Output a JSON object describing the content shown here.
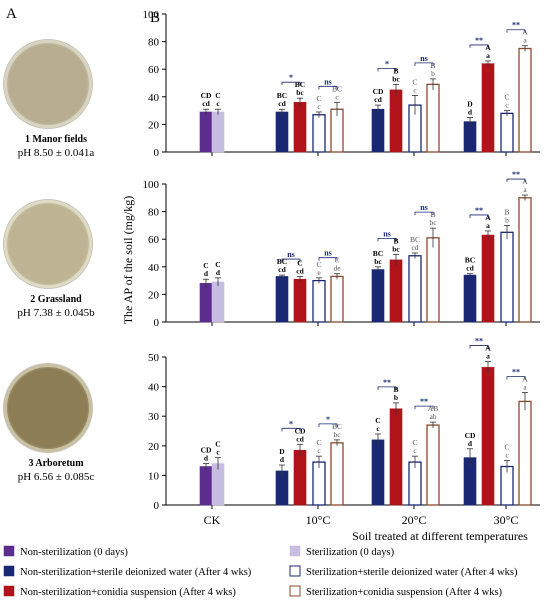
{
  "panel_a": {
    "letter": "A",
    "dishes": [
      {
        "label": "1 Manor fields",
        "ph": "pH 8.50 ± 0.041a",
        "color": "#b7ae92",
        "edge": "#d9d4c2"
      },
      {
        "label": "2 Grassland",
        "ph": "pH 7.38 ± 0.045b",
        "color": "#bdb493",
        "edge": "#dedac6"
      },
      {
        "label": "3 Arboretum",
        "ph": "pH 6.56 ± 0.085c",
        "color": "#8c7d55",
        "edge": "#c9c1a6"
      }
    ]
  },
  "chart_data": {
    "type": "bar",
    "panel_letter": "B",
    "ylabel": "The AP of the soil (mg/kg)",
    "xlabel": "Soil treated at different temperatures",
    "categories": [
      "CK",
      "10°C",
      "20°C",
      "30°C"
    ],
    "legend": [
      {
        "label": "Non-sterilization (0 days)",
        "color": "#5b2d8e",
        "fill": "#5b2d8e"
      },
      {
        "label": "Sterilization (0 days)",
        "color": "#c7bde0",
        "fill": "#c7bde0"
      },
      {
        "label": "Non-sterilization+sterile deionized water (After 4 wks)",
        "color": "#1a2873",
        "fill": "#1a2873"
      },
      {
        "label": "Sterilization+sterile deionized water (After 4 wks)",
        "color": "#1a2873",
        "fill": "#ffffff"
      },
      {
        "label": "Non-sterilization+conidia suspension (After 4 wks)",
        "color": "#b0141a",
        "fill": "#b0141a"
      },
      {
        "label": "Sterilization+conidia suspension (After 4 wks)",
        "color": "#8b4a2b",
        "fill": "#ffffff"
      }
    ],
    "panels": [
      {
        "ylim": [
          0,
          100
        ],
        "yticks": [
          0,
          20,
          40,
          60,
          80,
          100
        ],
        "ck": [
          {
            "v": 29,
            "e": 2,
            "up": "CD",
            "lo": "cd"
          },
          {
            "v": 29,
            "e": 2,
            "up": "C",
            "lo": "c"
          }
        ],
        "temps": [
          [
            {
              "v": 29,
              "e": 2,
              "up": "BC",
              "lo": "cd"
            },
            {
              "v": 36,
              "e": 3,
              "up": "BC",
              "lo": "bc"
            },
            {
              "v": 27,
              "e": 2,
              "up": "C",
              "lo": "c"
            },
            {
              "v": 31,
              "e": 5,
              "up": "BC",
              "lo": "c"
            }
          ],
          [
            {
              "v": 31,
              "e": 3,
              "up": "CD",
              "lo": "cd"
            },
            {
              "v": 45,
              "e": 4,
              "up": "B",
              "lo": "bc"
            },
            {
              "v": 34,
              "e": 7,
              "up": "C",
              "lo": "c"
            },
            {
              "v": 49,
              "e": 4,
              "up": "B",
              "lo": "b"
            }
          ],
          [
            {
              "v": 22,
              "e": 3,
              "up": "D",
              "lo": "d"
            },
            {
              "v": 64,
              "e": 2,
              "up": "A",
              "lo": "a"
            },
            {
              "v": 28,
              "e": 2,
              "up": "C",
              "lo": "c"
            },
            {
              "v": 75,
              "e": 2,
              "up": "A",
              "lo": "a"
            }
          ]
        ],
        "sig": [
          [
            "*",
            "ns"
          ],
          [
            "*",
            "ns"
          ],
          [
            "**",
            "**"
          ]
        ]
      },
      {
        "ylim": [
          0,
          100
        ],
        "yticks": [
          0,
          20,
          40,
          60,
          80,
          100
        ],
        "ck": [
          {
            "v": 28,
            "e": 3,
            "up": "C",
            "lo": "d"
          },
          {
            "v": 29,
            "e": 3,
            "up": "C",
            "lo": "d"
          }
        ],
        "temps": [
          [
            {
              "v": 33,
              "e": 1,
              "up": "BC",
              "lo": "cd"
            },
            {
              "v": 31,
              "e": 2,
              "up": "C",
              "lo": "cd"
            },
            {
              "v": 30,
              "e": 2,
              "up": "C",
              "lo": "e"
            },
            {
              "v": 33,
              "e": 2,
              "up": "C",
              "lo": "de"
            }
          ],
          [
            {
              "v": 38,
              "e": 2,
              "up": "BC",
              "lo": "bc"
            },
            {
              "v": 45,
              "e": 4,
              "up": "B",
              "lo": "bc"
            },
            {
              "v": 48,
              "e": 2,
              "up": "BC",
              "lo": "cd"
            },
            {
              "v": 61,
              "e": 7,
              "up": "B",
              "lo": "bc"
            }
          ],
          [
            {
              "v": 34,
              "e": 1,
              "up": "BC",
              "lo": "cd"
            },
            {
              "v": 63,
              "e": 3,
              "up": "A",
              "lo": "a"
            },
            {
              "v": 65,
              "e": 5,
              "up": "B",
              "lo": "b"
            },
            {
              "v": 90,
              "e": 2,
              "up": "A",
              "lo": "a"
            }
          ]
        ],
        "sig": [
          [
            "ns",
            "ns"
          ],
          [
            "ns",
            "ns"
          ],
          [
            "**",
            "**"
          ]
        ]
      },
      {
        "ylim": [
          0,
          50
        ],
        "yticks": [
          0,
          10,
          20,
          30,
          40,
          50
        ],
        "ck": [
          {
            "v": 13,
            "e": 1,
            "up": "CD",
            "lo": "d"
          },
          {
            "v": 14,
            "e": 2,
            "up": "C",
            "lo": "c"
          }
        ],
        "temps": [
          [
            {
              "v": 11.5,
              "e": 2,
              "up": "D",
              "lo": "d"
            },
            {
              "v": 18.5,
              "e": 2,
              "up": "CD",
              "lo": "cd"
            },
            {
              "v": 14.5,
              "e": 2,
              "up": "C",
              "lo": "c"
            },
            {
              "v": 21,
              "e": 1,
              "up": "BC",
              "lo": "bc"
            }
          ],
          [
            {
              "v": 22,
              "e": 2,
              "up": "C",
              "lo": "c"
            },
            {
              "v": 32.5,
              "e": 2,
              "up": "B",
              "lo": "b"
            },
            {
              "v": 14.5,
              "e": 2,
              "up": "C",
              "lo": "c"
            },
            {
              "v": 27,
              "e": 1,
              "up": "AB",
              "lo": "ab"
            }
          ],
          [
            {
              "v": 16,
              "e": 3,
              "up": "CD",
              "lo": "d"
            },
            {
              "v": 46.5,
              "e": 2,
              "up": "A",
              "lo": "a"
            },
            {
              "v": 13,
              "e": 2,
              "up": "C",
              "lo": "c"
            },
            {
              "v": 35,
              "e": 3,
              "up": "A",
              "lo": "a"
            }
          ]
        ],
        "sig": [
          [
            "*",
            "*"
          ],
          [
            "**",
            "**"
          ],
          [
            "**",
            "**"
          ]
        ]
      }
    ]
  }
}
